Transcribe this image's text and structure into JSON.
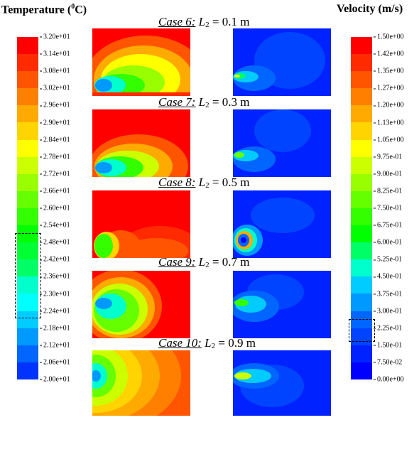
{
  "temperature": {
    "title": "Temperature (",
    "title_sup": "0",
    "title_end": "C)",
    "ticks": [
      "3.20e+01",
      "3.14e+01",
      "3.08e+01",
      "3.02e+01",
      "2.96e+01",
      "2.90e+01",
      "2.84e+01",
      "2.78e+01",
      "2.72e+01",
      "2.66e+01",
      "2.60e+01",
      "2.54e+01",
      "2.48e+01",
      "2.42e+01",
      "2.36e+01",
      "2.30e+01",
      "2.24e+01",
      "2.18e+01",
      "2.12e+01",
      "2.06e+01",
      "2.00e+01"
    ],
    "colors": [
      "#ff0000",
      "#ff2a00",
      "#ff5500",
      "#ff8000",
      "#ffaa00",
      "#ffd400",
      "#ffff00",
      "#ccff00",
      "#99ff00",
      "#66ff00",
      "#33ff00",
      "#00ff00",
      "#00ff33",
      "#00ff66",
      "#00ffcc",
      "#00ffff",
      "#00ccff",
      "#0099ff",
      "#0066ff",
      "#0033ff"
    ]
  },
  "velocity": {
    "title": "Velocity (m/s)",
    "ticks": [
      "1.50e+00",
      "1.42e+00",
      "1.35e+00",
      "1.27e+00",
      "1.20e+00",
      "1.13e+00",
      "1.05e+00",
      "9.75e-01",
      "9.00e-01",
      "8.25e-01",
      "7.50e-01",
      "6.75e-01",
      "6.00e-01",
      "5.25e-01",
      "4.50e-01",
      "3.75e-01",
      "3.00e-01",
      "2.25e-01",
      "1.50e-01",
      "7.50e-02",
      "0.00e+00"
    ],
    "colors": [
      "#ff0000",
      "#ff2a00",
      "#ff5500",
      "#ff8000",
      "#ffaa00",
      "#ffd400",
      "#ffff00",
      "#ccff00",
      "#99ff00",
      "#66ff00",
      "#33ff00",
      "#00ff00",
      "#00ff66",
      "#00ffcc",
      "#00ccff",
      "#0099ff",
      "#0066ff",
      "#0044ff",
      "#0022ff",
      "#0000ff"
    ]
  },
  "cases": [
    {
      "case_label": "Case 6:",
      "param": "L",
      "sub": "2",
      "value": " = 0.1 m"
    },
    {
      "case_label": "Case 7:",
      "param": "L",
      "sub": "2",
      "value": " = 0.3 m"
    },
    {
      "case_label": "Case 8:",
      "param": "L",
      "sub": "2",
      "value": " = 0.5 m"
    },
    {
      "case_label": "Case 9:",
      "param": "L",
      "sub": "2",
      "value": " = 0.7 m"
    },
    {
      "case_label": "Case 10:",
      "param": "L",
      "sub": "2",
      "value": " = 0.9 m"
    }
  ]
}
